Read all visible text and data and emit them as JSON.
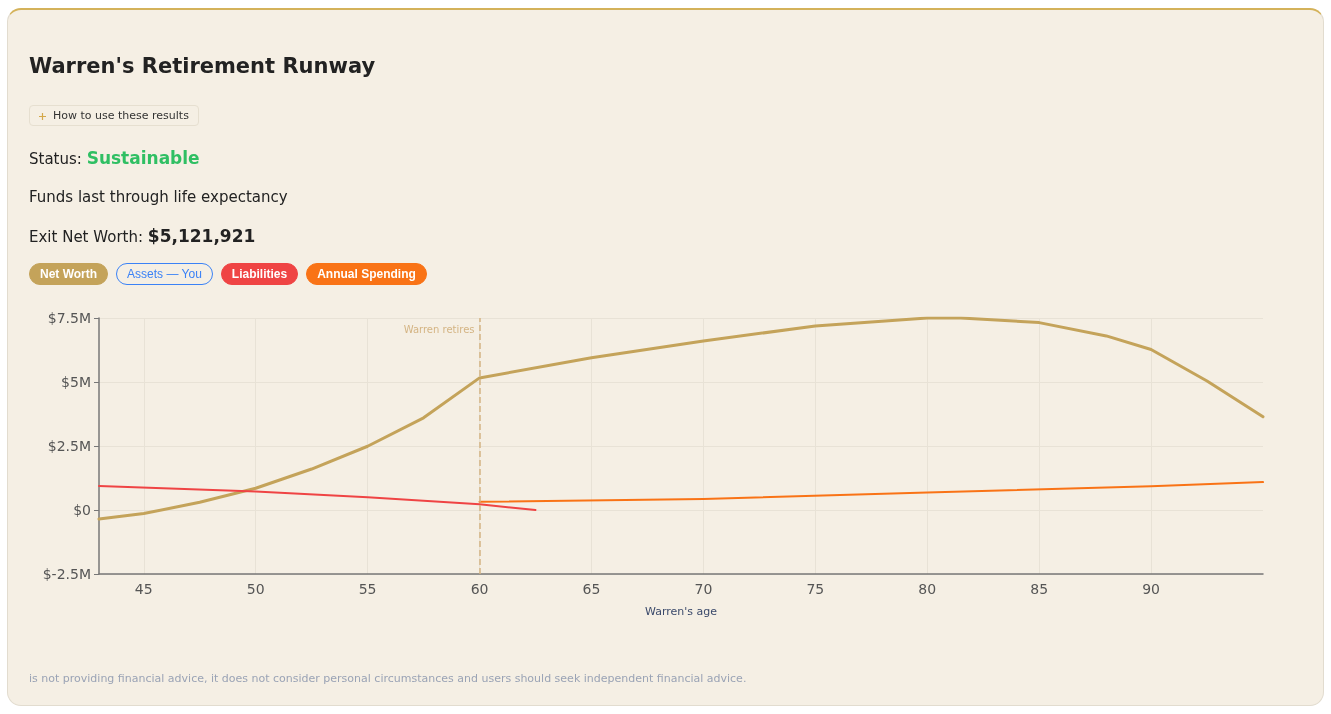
{
  "chart_data": {
    "type": "line",
    "title": "Warren's Retirement Runway",
    "xlabel": "Warren's age",
    "annotations": [
      "How to use these results",
      "Status: Sustainable",
      "Funds last through life expectancy",
      "Exit Net Worth: $5,121,921",
      "is not providing financial advice, it does not consider personal circumstances and users should seek independent financial advice."
    ],
    "series": [
      {
        "name": "Net Worth",
        "color": "#c4a35a",
        "x": [
          43,
          45,
          47.5,
          50,
          52.5,
          55,
          57.5,
          60,
          65,
          70,
          75,
          80,
          81.5,
          85,
          88,
          90,
          92.5,
          95
        ],
        "values": [
          -0.35,
          -0.14,
          0.3,
          0.85,
          1.6,
          2.49,
          3.6,
          5.16,
          5.95,
          6.6,
          7.19,
          7.5,
          7.5,
          7.32,
          6.8,
          6.27,
          5.04,
          3.64
        ]
      },
      {
        "name": "Assets — You",
        "color": "#3b82f6"
      },
      {
        "name": "Liabilities",
        "color": "#ef4444",
        "x": [
          43,
          50,
          55,
          60,
          62.5
        ],
        "values": [
          0.94,
          0.72,
          0.5,
          0.22,
          0
        ]
      },
      {
        "name": "Annual Spending",
        "color": "#f97316",
        "x": [
          60,
          70,
          80,
          90,
          95
        ],
        "values": [
          0.32,
          0.43,
          0.68,
          0.93,
          1.09
        ]
      }
    ],
    "xlim": [
      43,
      95
    ],
    "xticks": [
      45,
      50,
      55,
      60,
      65,
      70,
      75,
      80,
      85,
      90
    ],
    "ylim": [
      -2.5,
      7.5
    ],
    "yticks": [
      {
        "value": -2.5,
        "label": "$-2.5M"
      },
      {
        "value": 0,
        "label": "$0"
      },
      {
        "value": 2.5,
        "label": "$2.5M"
      },
      {
        "value": 5,
        "label": "$5M"
      },
      {
        "value": 7.5,
        "label": "$7.5M"
      }
    ],
    "ref_lines": [
      {
        "axis": "x",
        "value": 60,
        "label": "Warren retires",
        "color": "#d4b483",
        "line_style": "dashed"
      }
    ],
    "grid": true,
    "legend": "top left",
    "marker": "none",
    "line_style": "solid"
  }
}
